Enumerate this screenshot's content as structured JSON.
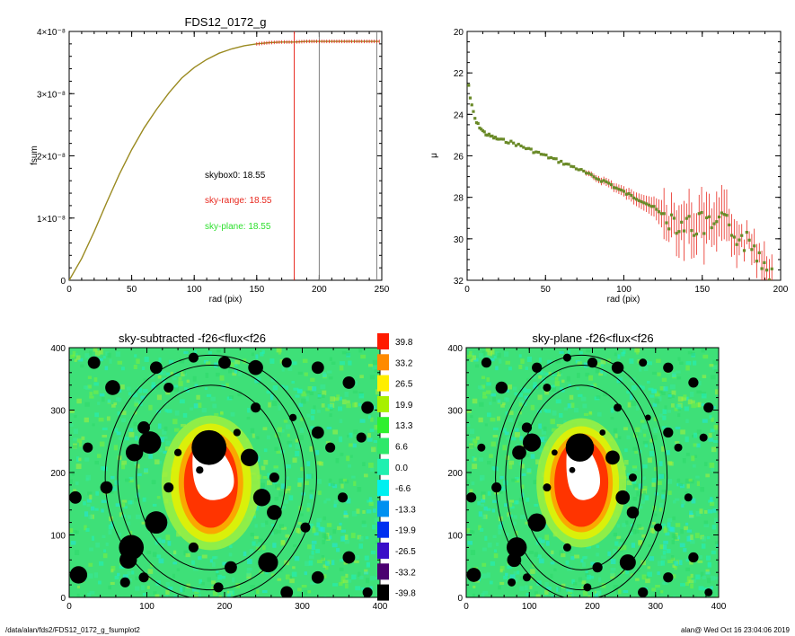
{
  "panels": {
    "fsum": {
      "title": "FDS12_0172_g",
      "xlabel": "rad (pix)",
      "ylabel": "fsum",
      "xticks": [
        "0",
        "50",
        "100",
        "150",
        "200",
        "250"
      ],
      "yticks": [
        "0",
        "1×10⁻⁸",
        "2×10⁻⁸",
        "3×10⁻⁸",
        "4×10⁻⁸"
      ],
      "annotations": [
        {
          "text": "skybox0: 18.55",
          "color": "#000000"
        },
        {
          "text": "sky-range: 18.55",
          "color": "#e8281e"
        },
        {
          "text": "sky-plane: 18.55",
          "color": "#2ee02e"
        }
      ]
    },
    "mu": {
      "xlabel": "rad (pix)",
      "ylabel": "μ",
      "xticks": [
        "0",
        "50",
        "100",
        "150",
        "200"
      ],
      "yticks": [
        "20",
        "22",
        "24",
        "26",
        "28",
        "30",
        "32"
      ]
    },
    "img_left": {
      "title": "sky-subtracted -f26<flux<f26",
      "xticks": [
        "0",
        "100",
        "200",
        "300",
        "400"
      ],
      "yticks": [
        "0",
        "100",
        "200",
        "300",
        "400"
      ]
    },
    "img_right": {
      "title": "sky-plane -f26<flux<f26",
      "xticks": [
        "0",
        "100",
        "200",
        "300",
        "400"
      ],
      "yticks": [
        "0",
        "100",
        "200",
        "300",
        "400"
      ]
    },
    "colorbar": {
      "labels": [
        "39.8",
        "33.2",
        "26.5",
        "19.9",
        "13.3",
        "6.6",
        "0.0",
        "-6.6",
        "-13.3",
        "-19.9",
        "-26.5",
        "-33.2",
        "-39.8"
      ],
      "colors": [
        "#ff1a00",
        "#ff8a00",
        "#ffee00",
        "#a8f000",
        "#2ef02e",
        "#2ee86a",
        "#20f0b0",
        "#00f0f0",
        "#0090f0",
        "#0030f0",
        "#3a10c8",
        "#4a0070",
        "#000000"
      ]
    }
  },
  "footer": {
    "left": "/data/alan/fds2/FDS12_0172_g_fsumplot2",
    "right": "alan@  Wed Oct 16 23:04:06 2019"
  },
  "chart_data": [
    {
      "type": "line",
      "title": "FDS12_0172_g",
      "xlabel": "rad (pix)",
      "ylabel": "fsum",
      "xlim": [
        0,
        250
      ],
      "ylim": [
        0,
        4e-08
      ],
      "series": [
        {
          "x": [
            0,
            10,
            20,
            30,
            40,
            50,
            60,
            70,
            80,
            90,
            100,
            110,
            120,
            130,
            140,
            150,
            160,
            170,
            180,
            190,
            200,
            210,
            220,
            230,
            240,
            248
          ],
          "values": [
            0,
            3.5e-09,
            7.8e-09,
            1.25e-08,
            1.7e-08,
            2.1e-08,
            2.45e-08,
            2.75e-08,
            3.02e-08,
            3.25e-08,
            3.42e-08,
            3.55e-08,
            3.65e-08,
            3.72e-08,
            3.77e-08,
            3.8e-08,
            3.82e-08,
            3.83e-08,
            3.83e-08,
            3.84e-08,
            3.84e-08,
            3.84e-08,
            3.84e-08,
            3.84e-08,
            3.84e-08,
            3.84e-08
          ]
        }
      ],
      "vlines": [
        {
          "x": 180,
          "color": "#e8281e"
        },
        {
          "x": 200,
          "color": "#808080"
        },
        {
          "x": 246,
          "color": "#808080"
        }
      ],
      "annotations": [
        "skybox0: 18.55",
        "sky-range: 18.55",
        "sky-plane: 18.55"
      ]
    },
    {
      "type": "scatter",
      "xlabel": "rad (pix)",
      "ylabel": "μ",
      "xlim": [
        0,
        200
      ],
      "ylim": [
        32,
        20
      ],
      "series": [
        {
          "x": [
            1,
            2,
            3,
            4,
            5,
            6,
            8,
            10,
            12,
            15,
            18,
            22,
            26,
            30,
            35,
            40,
            45,
            50,
            55,
            60,
            65,
            70,
            75,
            80,
            85,
            90,
            95,
            100,
            105,
            110,
            115,
            120,
            125,
            130,
            135,
            140,
            145,
            150,
            155,
            160,
            165,
            170,
            175,
            180,
            185,
            190,
            195
          ],
          "values": [
            22.6,
            23.2,
            23.6,
            23.9,
            24.2,
            24.4,
            24.6,
            24.8,
            24.95,
            25.05,
            25.15,
            25.25,
            25.3,
            25.4,
            25.55,
            25.7,
            25.85,
            26.0,
            26.15,
            26.3,
            26.45,
            26.6,
            26.8,
            27.0,
            27.15,
            27.3,
            27.55,
            27.75,
            27.95,
            28.1,
            28.3,
            28.55,
            28.9,
            29.0,
            29.2,
            29.3,
            29.4,
            29.3,
            29.5,
            29.4,
            29.3,
            29.6,
            30.0,
            30.3,
            30.6,
            31.2,
            31.6
          ],
          "errors": [
            0.05,
            0.05,
            0.05,
            0.05,
            0.05,
            0.05,
            0.05,
            0.05,
            0.05,
            0.05,
            0.05,
            0.05,
            0.05,
            0.05,
            0.05,
            0.05,
            0.05,
            0.05,
            0.05,
            0.08,
            0.1,
            0.1,
            0.12,
            0.15,
            0.18,
            0.2,
            0.22,
            0.25,
            0.3,
            0.35,
            0.4,
            0.5,
            0.7,
            0.6,
            0.8,
            0.7,
            0.9,
            0.8,
            0.9,
            0.8,
            0.9,
            0.6,
            0.5,
            0.4,
            0.4,
            0.3,
            0.3
          ]
        }
      ]
    }
  ]
}
